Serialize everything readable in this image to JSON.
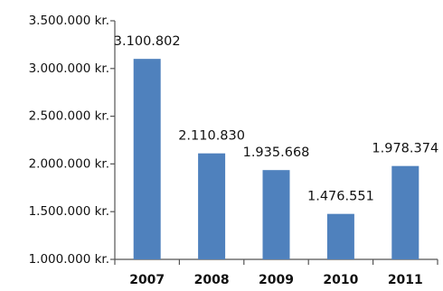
{
  "chart_data": {
    "type": "bar",
    "categories": [
      "2007",
      "2008",
      "2009",
      "2010",
      "2011"
    ],
    "values": [
      3100802,
      2110830,
      1935668,
      1476551,
      1978374
    ],
    "data_labels": [
      "3.100.802",
      "2.110.830",
      "1.935.668",
      "1.476.551",
      "1.978.374"
    ],
    "y_ticks": [
      1000000,
      1500000,
      2000000,
      2500000,
      3000000,
      3500000
    ],
    "y_tick_labels": [
      "1.000.000 kr.",
      "1.500.000 kr.",
      "2.000.000 kr.",
      "2.500.000 kr.",
      "3.000.000 kr.",
      "3.500.000 kr."
    ],
    "ylim": [
      1000000,
      3500000
    ],
    "bar_color": "#4f81bd",
    "axis_color": "#555555",
    "grid": false,
    "legend": "none"
  }
}
